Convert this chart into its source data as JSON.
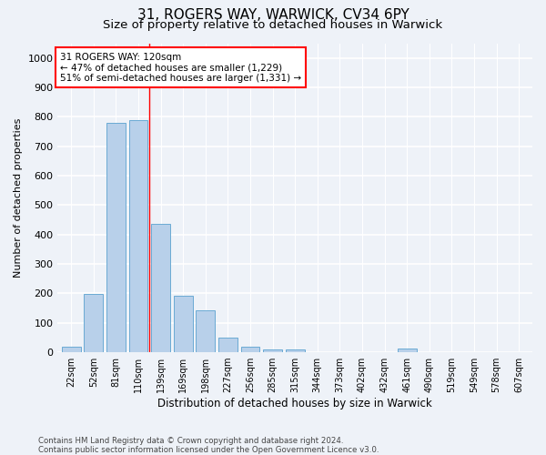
{
  "title1": "31, ROGERS WAY, WARWICK, CV34 6PY",
  "title2": "Size of property relative to detached houses in Warwick",
  "xlabel": "Distribution of detached houses by size in Warwick",
  "ylabel": "Number of detached properties",
  "categories": [
    "22sqm",
    "52sqm",
    "81sqm",
    "110sqm",
    "139sqm",
    "169sqm",
    "198sqm",
    "227sqm",
    "256sqm",
    "285sqm",
    "315sqm",
    "344sqm",
    "373sqm",
    "402sqm",
    "432sqm",
    "461sqm",
    "490sqm",
    "519sqm",
    "549sqm",
    "578sqm",
    "607sqm"
  ],
  "values": [
    18,
    198,
    780,
    790,
    435,
    192,
    142,
    50,
    18,
    10,
    10,
    0,
    0,
    0,
    0,
    12,
    0,
    0,
    0,
    0,
    0
  ],
  "bar_color": "#b8d0ea",
  "bar_edge_color": "#6aaad4",
  "vline_x": 3.5,
  "vline_color": "red",
  "annotation_text": "31 ROGERS WAY: 120sqm\n← 47% of detached houses are smaller (1,229)\n51% of semi-detached houses are larger (1,331) →",
  "annotation_box_color": "white",
  "annotation_box_edge_color": "red",
  "ylim": [
    0,
    1050
  ],
  "yticks": [
    0,
    100,
    200,
    300,
    400,
    500,
    600,
    700,
    800,
    900,
    1000
  ],
  "footer": "Contains HM Land Registry data © Crown copyright and database right 2024.\nContains public sector information licensed under the Open Government Licence v3.0.",
  "bg_color": "#eef2f8",
  "grid_color": "white",
  "title1_fontsize": 11,
  "title2_fontsize": 9.5
}
